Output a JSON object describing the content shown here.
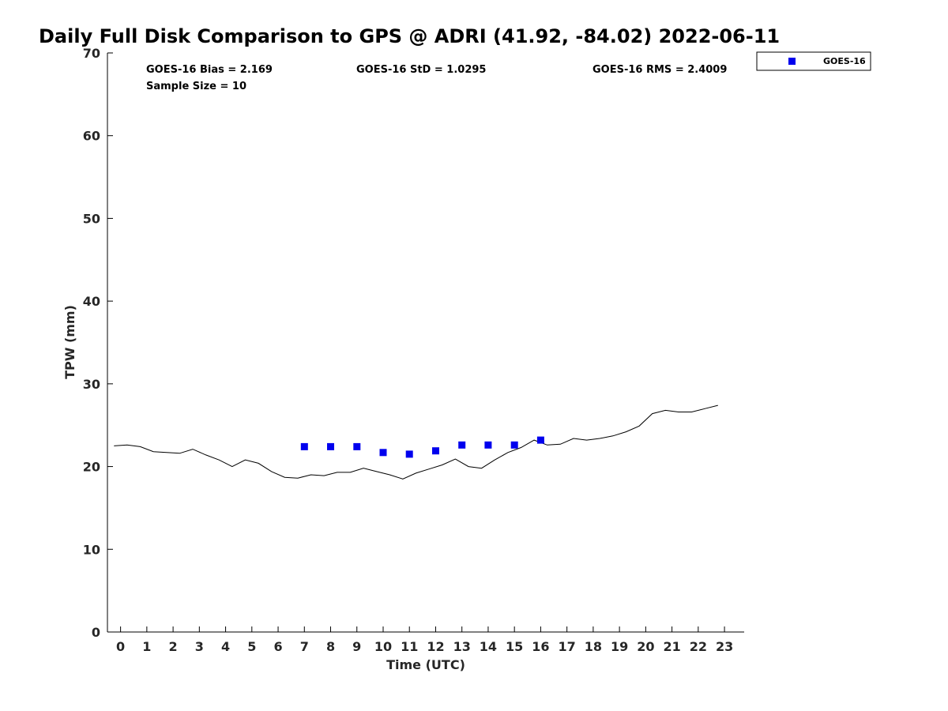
{
  "chart_data": {
    "type": "scatter",
    "title": "Daily Full Disk Comparison to GPS @ ADRI (41.92, -84.02) 2022-06-11",
    "xlabel": "Time (UTC)",
    "ylabel": "TPW (mm)",
    "xlim": [
      -0.5,
      23.75
    ],
    "ylim": [
      0,
      70
    ],
    "x_ticks": [
      0,
      1,
      2,
      3,
      4,
      5,
      6,
      7,
      8,
      9,
      10,
      11,
      12,
      13,
      14,
      15,
      16,
      17,
      18,
      19,
      20,
      21,
      22,
      23
    ],
    "y_ticks": [
      0,
      10,
      20,
      30,
      40,
      50,
      60,
      70
    ],
    "grid": false,
    "legend_position": "top-right, outside plot",
    "stats": {
      "bias": "GOES-16 Bias = 2.169",
      "std": "GOES-16 StD = 1.0295",
      "rms": "GOES-16 RMS = 2.4009",
      "sample": "Sample Size = 10"
    },
    "series": [
      {
        "name": "GOES-16",
        "marker": "square",
        "color": "#0000ee",
        "x": [
          7,
          8,
          9,
          10,
          11,
          12,
          13,
          14,
          15,
          16
        ],
        "y": [
          22.4,
          22.4,
          22.4,
          21.7,
          21.5,
          21.9,
          22.6,
          22.6,
          22.6,
          23.2
        ]
      },
      {
        "marker": "line",
        "color": "#000000",
        "x": [
          -0.25,
          0.25,
          0.75,
          1.25,
          1.75,
          2.25,
          2.75,
          3.25,
          3.75,
          4.25,
          4.75,
          5.25,
          5.75,
          6.25,
          6.75,
          7.25,
          7.75,
          8.25,
          8.75,
          9.25,
          9.75,
          10.25,
          10.75,
          11.25,
          11.75,
          12.25,
          12.75,
          13.25,
          13.75,
          14.25,
          14.75,
          15.25,
          15.75,
          16.25,
          16.75,
          17.25,
          17.75,
          18.25,
          18.75,
          19.25,
          19.75,
          20.25,
          20.75,
          21.25,
          21.75,
          22.25,
          22.75
        ],
        "y": [
          22.5,
          22.6,
          22.4,
          21.8,
          21.7,
          21.6,
          22.1,
          21.4,
          20.8,
          20.0,
          20.8,
          20.4,
          19.4,
          18.7,
          18.6,
          19.0,
          18.9,
          19.3,
          19.3,
          19.8,
          19.4,
          19.0,
          18.5,
          19.2,
          19.7,
          20.2,
          20.9,
          20.0,
          19.8,
          20.8,
          21.7,
          22.3,
          23.2,
          22.6,
          22.7,
          23.4,
          23.2,
          23.4,
          23.7,
          24.2,
          24.9,
          26.4,
          26.8,
          26.6,
          26.6,
          27.0,
          27.4
        ]
      }
    ]
  }
}
